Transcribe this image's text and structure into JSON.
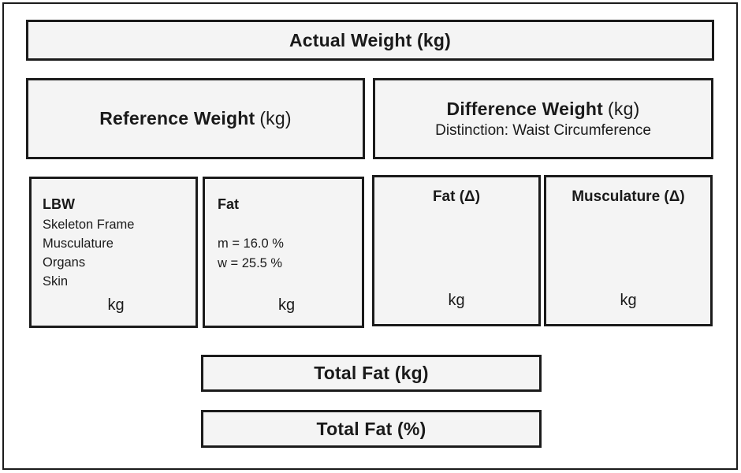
{
  "diagram": {
    "actual_weight": {
      "title": "Actual Weight (kg)"
    },
    "reference_weight": {
      "title": "Reference Weight",
      "unit": "(kg)"
    },
    "difference_weight": {
      "title": "Difference Weight",
      "unit": "(kg)",
      "subtitle": "Distinction: Waist Circumference"
    },
    "lbw": {
      "title": "LBW",
      "items": [
        "Skeleton Frame",
        "Musculature",
        "Organs",
        "Skin"
      ],
      "unit": "kg"
    },
    "fat": {
      "title": "Fat",
      "lines": [
        "m = 16.0 %",
        "w = 25.5 %"
      ],
      "unit": "kg"
    },
    "fat_delta": {
      "title": "Fat (Δ)",
      "unit": "kg"
    },
    "musculature_delta": {
      "title": "Musculature (Δ)",
      "unit": "kg"
    },
    "total_fat_kg": {
      "title": "Total Fat (kg)"
    },
    "total_fat_pct": {
      "title": "Total Fat (%)"
    }
  },
  "colors": {
    "background": "#ffffff",
    "box_fill": "#f4f4f4",
    "border": "#1b1b1b",
    "text": "#1a1a1a"
  }
}
